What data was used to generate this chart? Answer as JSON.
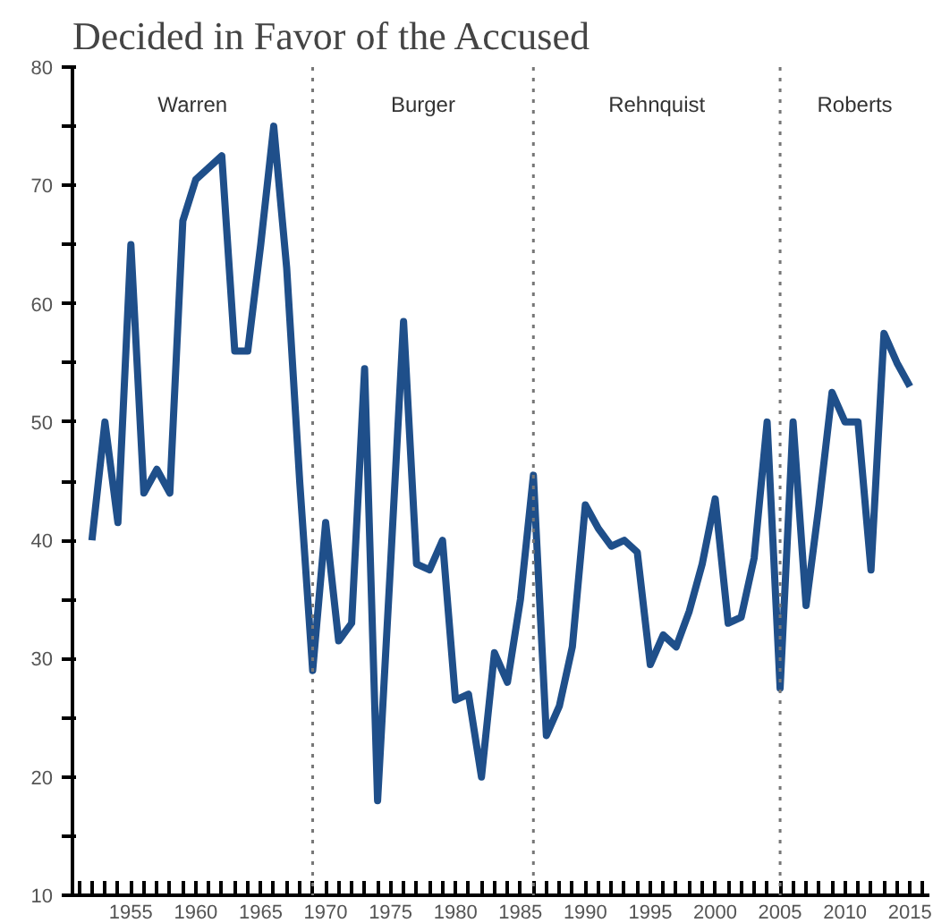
{
  "chart_data": {
    "type": "line",
    "title": "Decided in Favor of the Accused",
    "x": [
      1952,
      1953,
      1954,
      1955,
      1956,
      1957,
      1958,
      1959,
      1960,
      1961,
      1962,
      1963,
      1964,
      1965,
      1966,
      1967,
      1968,
      1969,
      1970,
      1971,
      1972,
      1973,
      1974,
      1975,
      1976,
      1977,
      1978,
      1979,
      1980,
      1981,
      1982,
      1983,
      1984,
      1985,
      1986,
      1987,
      1988,
      1989,
      1990,
      1991,
      1992,
      1993,
      1994,
      1995,
      1996,
      1997,
      1998,
      1999,
      2000,
      2001,
      2002,
      2003,
      2004,
      2005,
      2006,
      2007,
      2008,
      2009,
      2010,
      2011,
      2012,
      2013,
      2014,
      2015
    ],
    "series": [
      {
        "color": "#1f4f8a",
        "values": [
          40,
          50,
          41.5,
          65,
          44,
          46,
          44,
          67,
          70.5,
          71.5,
          72.5,
          56,
          56,
          65,
          75,
          63,
          45,
          29,
          41.5,
          31.5,
          33,
          54.5,
          18,
          38,
          58.5,
          38,
          37.5,
          40,
          26.5,
          27,
          20,
          30.5,
          28,
          35,
          45.5,
          23.5,
          26,
          31,
          43,
          41,
          39.5,
          40,
          39,
          29.5,
          32,
          31,
          34,
          38,
          43.5,
          33,
          33.5,
          38.5,
          50,
          27.5,
          50,
          34.5,
          43,
          52.5,
          50,
          50,
          37.5,
          57.5,
          55,
          53
        ]
      }
    ],
    "xlim": [
      1950.5,
      2016.5
    ],
    "xticks": [
      1955,
      1960,
      1965,
      1970,
      1975,
      1980,
      1985,
      1990,
      1995,
      2000,
      2005,
      2010,
      2015
    ],
    "ylim": [
      10,
      80
    ],
    "yticks": [
      10,
      {
        "value": 15,
        "label": null
      },
      20,
      {
        "value": 25,
        "label": null
      },
      30,
      {
        "value": 35,
        "label": null
      },
      40,
      {
        "value": 45,
        "label": null
      },
      50,
      {
        "value": 55,
        "label": null
      },
      60,
      {
        "value": 65,
        "label": null
      },
      70,
      {
        "value": 75,
        "label": null
      },
      80
    ],
    "ref_lines": [
      {
        "axis": "x",
        "value": 1969,
        "line_style": "dotted",
        "color": "#777777"
      },
      {
        "axis": "x",
        "value": 1986,
        "line_style": "dotted",
        "color": "#777777"
      },
      {
        "axis": "x",
        "value": 2005,
        "line_style": "dotted",
        "color": "#777777"
      }
    ],
    "annotations": [
      "Warren",
      "Burger",
      "Rehnquist",
      "Roberts"
    ],
    "grid": false,
    "marker": "none",
    "line_style": "solid"
  }
}
